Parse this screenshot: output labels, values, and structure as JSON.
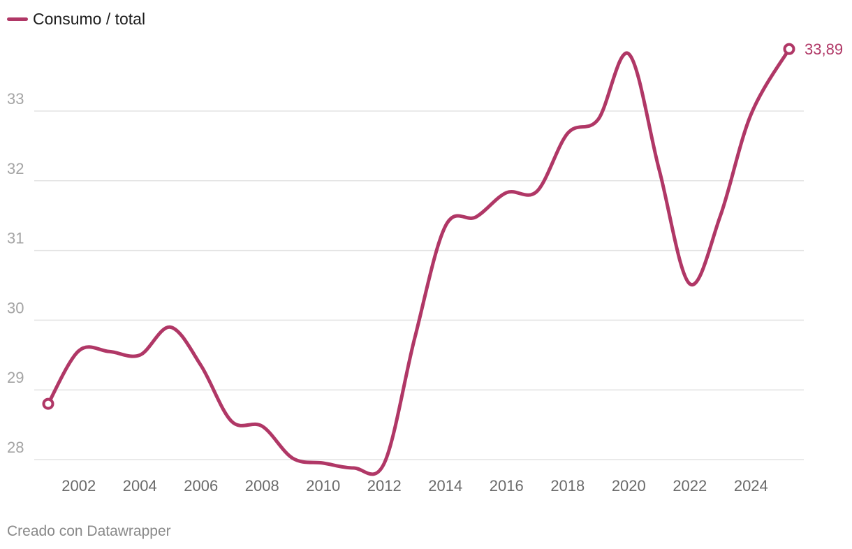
{
  "chart_data": {
    "type": "line",
    "series": [
      {
        "name": "Consumo / total",
        "color": "#b03766",
        "x": [
          2001.0,
          2002.0,
          2003.0,
          2004.0,
          2005.0,
          2006.0,
          2007.0,
          2008.0,
          2009.0,
          2010.0,
          2011.0,
          2012.0,
          2013.0,
          2014.0,
          2015.0,
          2016.0,
          2017.0,
          2018.0,
          2019.0,
          2020.0,
          2021.0,
          2022.0,
          2023.0,
          2024.0,
          2025.25
        ],
        "y": [
          28.8,
          29.56,
          29.55,
          29.5,
          29.9,
          29.35,
          28.55,
          28.48,
          28.02,
          27.95,
          27.88,
          27.95,
          29.75,
          31.35,
          31.48,
          31.83,
          31.85,
          32.68,
          32.88,
          33.82,
          32.15,
          30.52,
          31.5,
          32.95,
          33.89
        ]
      }
    ],
    "end_label": "33,89",
    "x_ticks": [
      "2002",
      "2004",
      "2006",
      "2008",
      "2010",
      "2012",
      "2014",
      "2016",
      "2018",
      "2020",
      "2022",
      "2024"
    ],
    "y_ticks": [
      "28",
      "29",
      "30",
      "31",
      "32",
      "33"
    ],
    "xlim": [
      2001.0,
      2025.25
    ],
    "ylim": [
      28,
      33
    ],
    "grid": true,
    "legend": "top-left"
  },
  "footer": "Creado con Datawrapper"
}
